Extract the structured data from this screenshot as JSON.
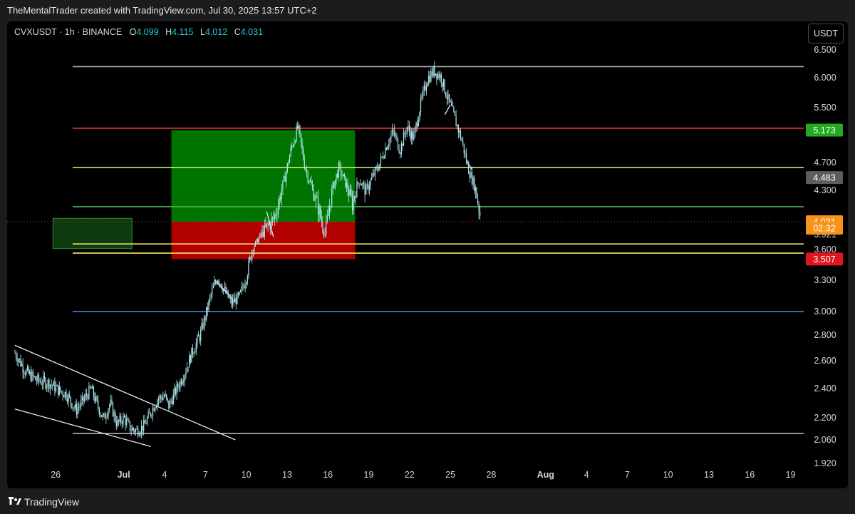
{
  "header": {
    "attribution": "TheMentalTrader created with TradingView.com, Jul 30, 2025 13:57 UTC+2"
  },
  "legend": {
    "symbol": "CVXUSDT · 1h · BINANCE",
    "open_label": "O",
    "open": "4.099",
    "high_label": "H",
    "high": "4.115",
    "low_label": "L",
    "low": "4.012",
    "close_label": "C",
    "close": "4.031"
  },
  "currency_button": "USDT",
  "footer": {
    "brand": "TradingView"
  },
  "colors": {
    "candle": "#b2ebf2",
    "target_zone": "#007400",
    "stop_zone": "#b00000",
    "entry_zone": "#0e3a10",
    "red_line": "#ff3b3b",
    "yellow_green_line": "#c6e86a",
    "green_line": "#4caf50",
    "yellow_line": "#f5e663",
    "blue_line": "#4a90e2",
    "grey_line": "#b0b0b0"
  },
  "chart_data": {
    "type": "candlestick",
    "symbol": "CVXUSDT",
    "timeframe": "1h",
    "exchange": "BINANCE",
    "y_ticks": [
      "6.500",
      "6.000",
      "5.500",
      "4.700",
      "4.300",
      "3.921",
      "3.600",
      "3.300",
      "3.000",
      "2.800",
      "2.600",
      "2.400",
      "2.200",
      "2.060",
      "1.920"
    ],
    "x_ticks": [
      "26",
      "Jul",
      "4",
      "7",
      "10",
      "13",
      "16",
      "19",
      "22",
      "25",
      "28",
      "Aug",
      "4",
      "7",
      "10",
      "13",
      "16",
      "19"
    ],
    "price_labels": [
      {
        "text": "5.173",
        "price": 5.173,
        "bg": "#22ab22",
        "fg": "#ffffff"
      },
      {
        "text": "4.483",
        "price": 4.483,
        "bg": "#5d5d5d",
        "fg": "#ffffff"
      },
      {
        "text": "4.031",
        "price": 4.031,
        "bg": "#f7931a",
        "fg": "#ffffff"
      },
      {
        "text": "02:32",
        "price": 3.975,
        "bg": "#f7931a",
        "fg": "#ffffff"
      },
      {
        "text": "3.507",
        "price": 3.507,
        "bg": "#e0161e",
        "fg": "#ffffff"
      }
    ],
    "horizontal_levels": [
      {
        "price": 6.2,
        "color": "#b0b0b0"
      },
      {
        "price": 5.2,
        "color": "#ff3b3b"
      },
      {
        "price": 4.63,
        "color": "#c6e86a"
      },
      {
        "price": 4.16,
        "color": "#4caf50"
      },
      {
        "price": 3.72,
        "color": "#f5e663"
      },
      {
        "price": 3.565,
        "color": "#f5e663"
      },
      {
        "price": 3.0,
        "color": "#4a90e2"
      },
      {
        "price": 2.1,
        "color": "#b0b0b0"
      }
    ],
    "zones": [
      {
        "name": "target",
        "x0": 34.5,
        "x1": 48.0,
        "p_top": 5.173,
        "p_bottom": 4.031,
        "color": "#007400"
      },
      {
        "name": "stop",
        "x0": 34.5,
        "x1": 48.0,
        "p_top": 4.031,
        "p_bottom": 3.507,
        "color": "#b00000"
      },
      {
        "name": "entry",
        "x0": 25.8,
        "x1": 31.6,
        "p_top": 4.06,
        "p_bottom": 3.62,
        "color": "#0e3a10"
      }
    ],
    "price_path": [
      [
        23.0,
        2.66
      ],
      [
        23.8,
        2.52
      ],
      [
        24.6,
        2.46
      ],
      [
        25.5,
        2.44
      ],
      [
        26.2,
        2.39
      ],
      [
        26.8,
        2.36
      ],
      [
        27.5,
        2.25
      ],
      [
        28.1,
        2.33
      ],
      [
        28.6,
        2.4
      ],
      [
        29.0,
        2.3
      ],
      [
        29.5,
        2.19
      ],
      [
        30.0,
        2.3
      ],
      [
        30.5,
        2.16
      ],
      [
        31.0,
        2.2
      ],
      [
        31.5,
        2.13
      ],
      [
        32.0,
        2.12
      ],
      [
        32.5,
        2.15
      ],
      [
        33.0,
        2.24
      ],
      [
        33.5,
        2.33
      ],
      [
        34.0,
        2.35
      ],
      [
        34.3,
        2.28
      ],
      [
        34.8,
        2.38
      ],
      [
        35.5,
        2.52
      ],
      [
        36.0,
        2.66
      ],
      [
        36.6,
        2.8
      ],
      [
        37.0,
        2.96
      ],
      [
        37.5,
        3.2
      ],
      [
        37.9,
        3.33
      ],
      [
        38.4,
        3.2
      ],
      [
        38.9,
        3.08
      ],
      [
        39.5,
        3.14
      ],
      [
        40.0,
        3.33
      ],
      [
        40.5,
        3.65
      ],
      [
        41.0,
        3.87
      ],
      [
        41.5,
        3.98
      ],
      [
        42.0,
        4.05
      ],
      [
        42.4,
        4.2
      ],
      [
        42.8,
        4.45
      ],
      [
        43.3,
        4.9
      ],
      [
        43.8,
        5.22
      ],
      [
        44.3,
        4.65
      ],
      [
        44.8,
        4.35
      ],
      [
        45.3,
        4.14
      ],
      [
        45.8,
        3.92
      ],
      [
        46.3,
        4.3
      ],
      [
        46.8,
        4.62
      ],
      [
        47.3,
        4.4
      ],
      [
        47.8,
        4.18
      ],
      [
        48.3,
        4.45
      ],
      [
        48.8,
        4.3
      ],
      [
        49.3,
        4.5
      ],
      [
        49.8,
        4.68
      ],
      [
        50.3,
        4.95
      ],
      [
        50.8,
        5.15
      ],
      [
        51.3,
        4.88
      ],
      [
        51.8,
        5.22
      ],
      [
        52.3,
        5.05
      ],
      [
        52.8,
        5.55
      ],
      [
        53.3,
        5.98
      ],
      [
        53.8,
        6.12
      ],
      [
        54.3,
        6.02
      ],
      [
        54.8,
        5.65
      ],
      [
        55.3,
        5.35
      ],
      [
        55.8,
        5.05
      ],
      [
        56.3,
        4.62
      ],
      [
        56.8,
        4.35
      ],
      [
        57.2,
        4.08
      ]
    ],
    "trendlines": [
      {
        "x0": 23.0,
        "p0": 2.72,
        "x1": 39.2,
        "p1": 2.06
      },
      {
        "x0": 23.0,
        "p0": 2.26,
        "x1": 33.0,
        "p1": 2.02
      },
      {
        "x0": 37.7,
        "p0": 3.3,
        "x1": 39.0,
        "p1": 3.12
      },
      {
        "x0": 41.5,
        "p0": 4.12,
        "x1": 42.0,
        "p1": 3.87
      },
      {
        "x0": 55.0,
        "p0": 5.55,
        "x1": 54.6,
        "p1": 5.4
      },
      {
        "x0": 56.2,
        "p0": 4.72,
        "x1": 56.6,
        "p1": 4.6
      }
    ]
  }
}
